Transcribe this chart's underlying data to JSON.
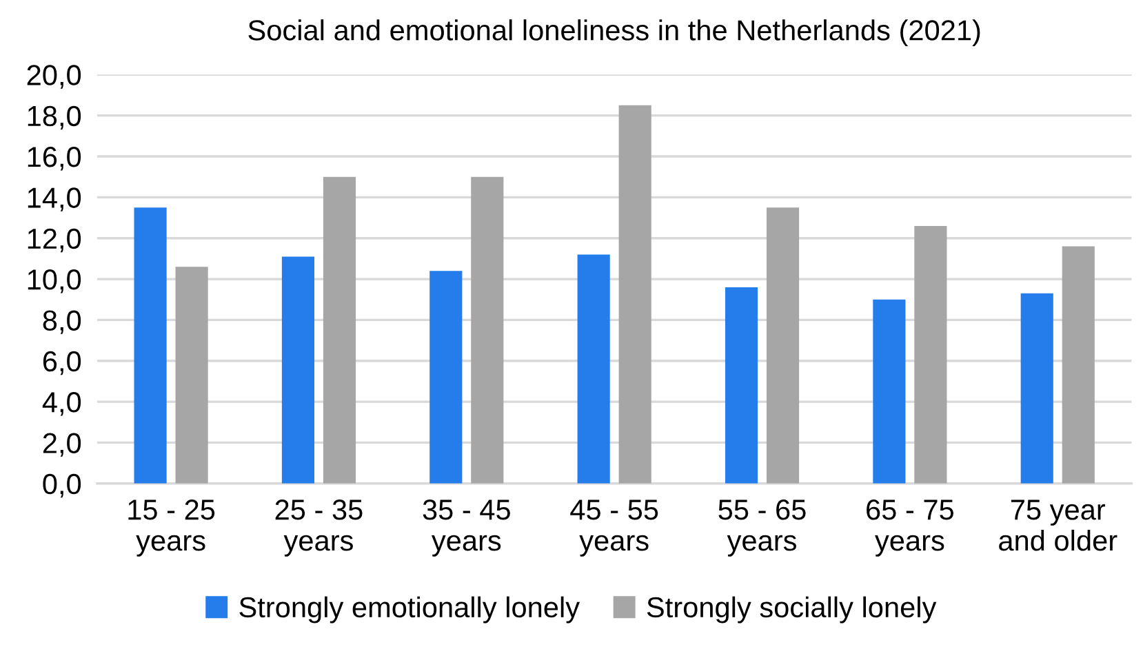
{
  "chart_data": {
    "type": "bar",
    "title": "Social and emotional loneliness in the Netherlands (2021)",
    "categories": [
      "15 - 25\nyears",
      "25 - 35\nyears",
      "35 - 45\nyears",
      "45 - 55\nyears",
      "55 - 65\nyears",
      "65 - 75\nyears",
      "75 year\nand older"
    ],
    "series": [
      {
        "name": "Strongly emotionally lonely",
        "color": "#257ceb",
        "values": [
          13.5,
          11.1,
          10.4,
          11.2,
          9.6,
          9.0,
          9.3
        ]
      },
      {
        "name": "Strongly socially lonely",
        "color": "#a6a6a6",
        "values": [
          10.6,
          15.0,
          15.0,
          18.5,
          13.5,
          12.6,
          11.6
        ]
      }
    ],
    "ylim": [
      0,
      20
    ],
    "yticks": [
      {
        "value": 0,
        "label": "0,0"
      },
      {
        "value": 2,
        "label": "2,0"
      },
      {
        "value": 4,
        "label": "4,0"
      },
      {
        "value": 6,
        "label": "6,0"
      },
      {
        "value": 8,
        "label": "8,0"
      },
      {
        "value": 10,
        "label": "10,0"
      },
      {
        "value": 12,
        "label": "12,0"
      },
      {
        "value": 14,
        "label": "14,0"
      },
      {
        "value": 16,
        "label": "16,0"
      },
      {
        "value": 18,
        "label": "18,0"
      },
      {
        "value": 20,
        "label": "20,0"
      }
    ],
    "grid": "y",
    "legend": "bottom"
  }
}
